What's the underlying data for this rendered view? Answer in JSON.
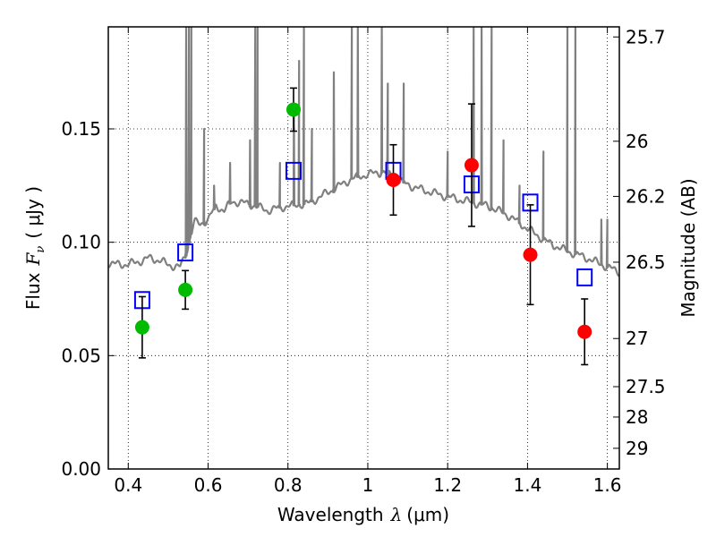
{
  "chart_data": {
    "type": "scatter",
    "title": "",
    "xlabel": "Wavelength  λ (μm)",
    "ylabel": "Flux  F_ν  ( μJy )",
    "ylabel_parts": {
      "prefix": "Flux",
      "symbol": "F",
      "subscript": "ν",
      "unit": "( μJy )"
    },
    "xlabel_parts": {
      "text": "Wavelength",
      "symbol": "λ",
      "unit": "(μm)"
    },
    "right_ylabel": "Magnitude (AB)",
    "xlim": [
      0.35,
      1.63
    ],
    "ylim": [
      0.0,
      0.195
    ],
    "grid": true,
    "x_ticks": [
      {
        "value": 0.4,
        "label": "0.4"
      },
      {
        "value": 0.6,
        "label": "0.6"
      },
      {
        "value": 0.8,
        "label": "0.8"
      },
      {
        "value": 1.0,
        "label": "1"
      },
      {
        "value": 1.2,
        "label": "1.2"
      },
      {
        "value": 1.4,
        "label": "1.4"
      },
      {
        "value": 1.6,
        "label": "1.6"
      }
    ],
    "y_ticks": [
      {
        "value": 0.0,
        "label": "0.00"
      },
      {
        "value": 0.05,
        "label": "0.05"
      },
      {
        "value": 0.1,
        "label": "0.10"
      },
      {
        "value": 0.15,
        "label": "0.15"
      }
    ],
    "right_ticks": [
      {
        "mag": 25.7,
        "label": "25.7"
      },
      {
        "mag": 26.0,
        "label": "26"
      },
      {
        "mag": 26.2,
        "label": "26.2"
      },
      {
        "mag": 26.5,
        "label": "26.5"
      },
      {
        "mag": 27.0,
        "label": "27"
      },
      {
        "mag": 27.5,
        "label": "27.5"
      },
      {
        "mag": 28.0,
        "label": "28"
      },
      {
        "mag": 29.0,
        "label": "29"
      }
    ],
    "series": [
      {
        "color": "#00bb00",
        "marker": "circle",
        "points": [
          {
            "x": 0.435,
            "y": 0.0625,
            "err": 0.0135
          },
          {
            "x": 0.543,
            "y": 0.079,
            "err": 0.0085
          },
          {
            "x": 0.814,
            "y": 0.1585,
            "err": 0.0095
          }
        ]
      },
      {
        "color": "#ff0000",
        "marker": "circle",
        "points": [
          {
            "x": 1.064,
            "y": 0.1275,
            "err": 0.0155
          },
          {
            "x": 1.26,
            "y": 0.134,
            "err": 0.027
          },
          {
            "x": 1.407,
            "y": 0.0945,
            "err": 0.022
          },
          {
            "x": 1.543,
            "y": 0.0605,
            "err": 0.0145
          }
        ]
      },
      {
        "color": "#0000ff",
        "marker": "open-square",
        "points": [
          {
            "x": 0.435,
            "y": 0.0745
          },
          {
            "x": 0.543,
            "y": 0.0955
          },
          {
            "x": 0.814,
            "y": 0.1315
          },
          {
            "x": 1.064,
            "y": 0.1315
          },
          {
            "x": 1.26,
            "y": 0.1255
          },
          {
            "x": 1.407,
            "y": 0.1175
          },
          {
            "x": 1.543,
            "y": 0.0845
          }
        ]
      },
      {
        "color": "#808080",
        "marker": "line",
        "continuum": [
          [
            0.35,
            0.091
          ],
          [
            0.38,
            0.09
          ],
          [
            0.42,
            0.091
          ],
          [
            0.45,
            0.093
          ],
          [
            0.48,
            0.092
          ],
          [
            0.5,
            0.09
          ],
          [
            0.53,
            0.089
          ],
          [
            0.545,
            0.095
          ],
          [
            0.555,
            0.102
          ],
          [
            0.565,
            0.109
          ],
          [
            0.58,
            0.108
          ],
          [
            0.6,
            0.11
          ],
          [
            0.62,
            0.116
          ],
          [
            0.64,
            0.114
          ],
          [
            0.66,
            0.118
          ],
          [
            0.7,
            0.117
          ],
          [
            0.75,
            0.114
          ],
          [
            0.8,
            0.116
          ],
          [
            0.85,
            0.117
          ],
          [
            0.88,
            0.12
          ],
          [
            0.92,
            0.124
          ],
          [
            0.96,
            0.128
          ],
          [
            1.0,
            0.13
          ],
          [
            1.04,
            0.131
          ],
          [
            1.08,
            0.127
          ],
          [
            1.12,
            0.124
          ],
          [
            1.16,
            0.122
          ],
          [
            1.2,
            0.12
          ],
          [
            1.25,
            0.118
          ],
          [
            1.3,
            0.116
          ],
          [
            1.35,
            0.112
          ],
          [
            1.4,
            0.106
          ],
          [
            1.45,
            0.1
          ],
          [
            1.5,
            0.096
          ],
          [
            1.55,
            0.093
          ],
          [
            1.6,
            0.089
          ],
          [
            1.63,
            0.087
          ]
        ],
        "emission_lines": [
          {
            "x": 0.545,
            "peak": 0.195
          },
          {
            "x": 0.552,
            "peak": 0.195
          },
          {
            "x": 0.558,
            "peak": 0.195
          },
          {
            "x": 0.59,
            "peak": 0.15
          },
          {
            "x": 0.615,
            "peak": 0.125
          },
          {
            "x": 0.655,
            "peak": 0.135
          },
          {
            "x": 0.705,
            "peak": 0.145
          },
          {
            "x": 0.718,
            "peak": 0.195
          },
          {
            "x": 0.724,
            "peak": 0.195
          },
          {
            "x": 0.78,
            "peak": 0.135
          },
          {
            "x": 0.815,
            "peak": 0.16
          },
          {
            "x": 0.828,
            "peak": 0.18
          },
          {
            "x": 0.84,
            "peak": 0.195
          },
          {
            "x": 0.86,
            "peak": 0.15
          },
          {
            "x": 0.915,
            "peak": 0.175
          },
          {
            "x": 0.96,
            "peak": 0.195
          },
          {
            "x": 0.975,
            "peak": 0.195
          },
          {
            "x": 1.035,
            "peak": 0.195
          },
          {
            "x": 1.05,
            "peak": 0.17
          },
          {
            "x": 1.09,
            "peak": 0.17
          },
          {
            "x": 1.2,
            "peak": 0.14
          },
          {
            "x": 1.265,
            "peak": 0.195
          },
          {
            "x": 1.285,
            "peak": 0.195
          },
          {
            "x": 1.31,
            "peak": 0.195
          },
          {
            "x": 1.34,
            "peak": 0.145
          },
          {
            "x": 1.38,
            "peak": 0.125
          },
          {
            "x": 1.44,
            "peak": 0.14
          },
          {
            "x": 1.5,
            "peak": 0.195
          },
          {
            "x": 1.52,
            "peak": 0.195
          },
          {
            "x": 1.585,
            "peak": 0.11
          },
          {
            "x": 1.6,
            "peak": 0.11
          }
        ]
      }
    ]
  }
}
